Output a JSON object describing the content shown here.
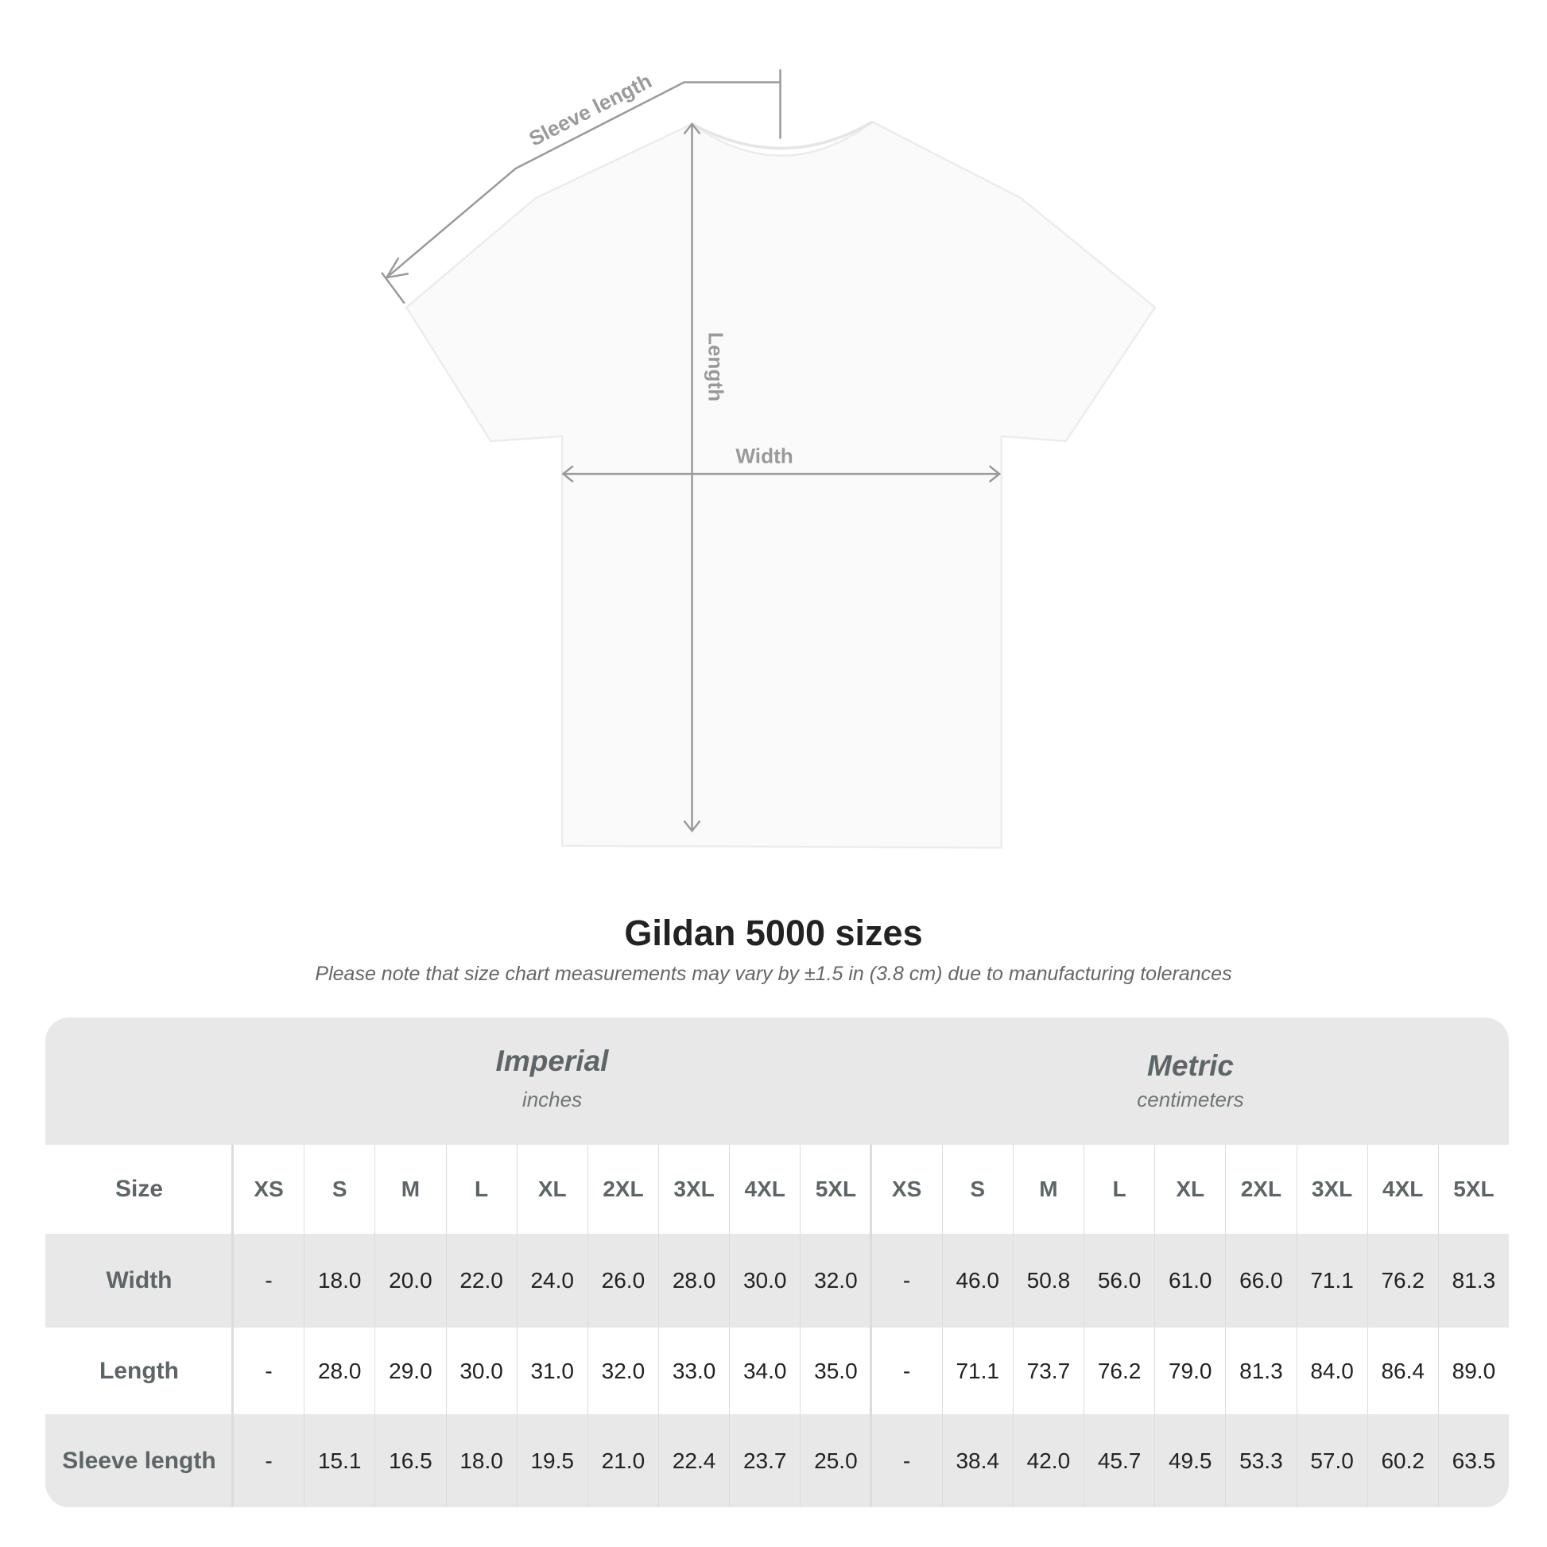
{
  "diagram": {
    "sleeve_label": "Sleeve length",
    "length_label": "Length",
    "width_label": "Width",
    "shirt_color": "#ffffff",
    "line_color": "#9a9a9a"
  },
  "title": "Gildan 5000 sizes",
  "subtitle": "Please note that size chart measurements may vary by ±1.5 in (3.8 cm) due to manufacturing tolerances",
  "table": {
    "imperial": {
      "name": "Imperial",
      "unit": "inches"
    },
    "metric": {
      "name": "Metric",
      "unit": "centimeters"
    },
    "size_label": "Size",
    "sizes": [
      "XS",
      "S",
      "M",
      "L",
      "XL",
      "2XL",
      "3XL",
      "4XL",
      "5XL"
    ],
    "rows": [
      {
        "label": "Width",
        "imperial": [
          "-",
          "18.0",
          "20.0",
          "22.0",
          "24.0",
          "26.0",
          "28.0",
          "30.0",
          "32.0"
        ],
        "metric": [
          "-",
          "46.0",
          "50.8",
          "56.0",
          "61.0",
          "66.0",
          "71.1",
          "76.2",
          "81.3"
        ]
      },
      {
        "label": "Length",
        "imperial": [
          "-",
          "28.0",
          "29.0",
          "30.0",
          "31.0",
          "32.0",
          "33.0",
          "34.0",
          "35.0"
        ],
        "metric": [
          "-",
          "71.1",
          "73.7",
          "76.2",
          "79.0",
          "81.3",
          "84.0",
          "86.4",
          "89.0"
        ]
      },
      {
        "label": "Sleeve length",
        "imperial": [
          "-",
          "15.1",
          "16.5",
          "18.0",
          "19.5",
          "21.0",
          "22.4",
          "23.7",
          "25.0"
        ],
        "metric": [
          "-",
          "38.4",
          "42.0",
          "45.7",
          "49.5",
          "53.3",
          "57.0",
          "60.2",
          "63.5"
        ]
      }
    ],
    "band_color": "#e8e8e8"
  }
}
